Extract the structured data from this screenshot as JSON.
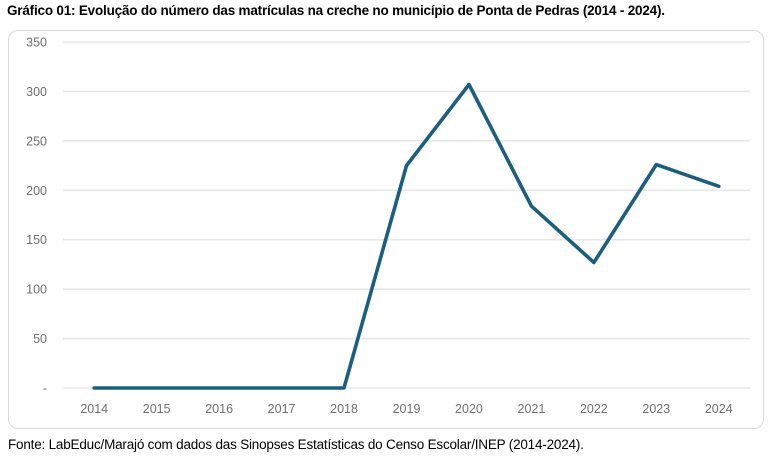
{
  "title": "Gráfico 01: Evolução do número das matrículas na creche no município de Ponta de Pedras (2014 - 2024).",
  "source": "Fonte: LabEduc/Marajó com dados das Sinopses Estatísticas do Censo Escolar/INEP (2014-2024).",
  "colors": {
    "line": "#1C5E80",
    "gridline": "#E7E7E7",
    "axis_text": "#6E6E6E",
    "chart_border": "#D9D9D9",
    "background": "#FFFFFF"
  },
  "chart_data": {
    "type": "line",
    "title": "Gráfico 01: Evolução do número das matrículas na creche no município de Ponta de Pedras (2014 - 2024).",
    "categories": [
      "2014",
      "2015",
      "2016",
      "2017",
      "2018",
      "2019",
      "2020",
      "2021",
      "2022",
      "2023",
      "2024"
    ],
    "values": [
      0,
      0,
      0,
      0,
      0,
      225,
      307,
      184,
      127,
      226,
      204
    ],
    "xlabel": "",
    "ylabel": "",
    "ylim": [
      0,
      350
    ],
    "ytick_values": [
      0,
      50,
      100,
      150,
      200,
      250,
      300,
      350
    ],
    "ytick_labels": [
      "-",
      "50",
      "100",
      "150",
      "200",
      "250",
      "300",
      "350"
    ],
    "grid": "horizontal",
    "legend": "none",
    "markers": "none"
  }
}
